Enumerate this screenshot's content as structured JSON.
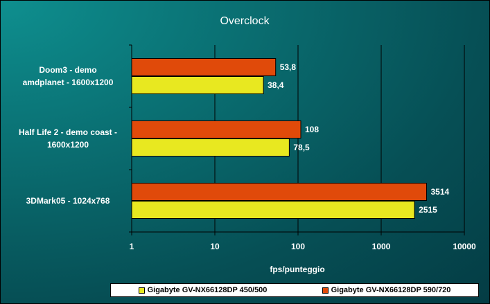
{
  "colors": {
    "series_a": "#e8e820",
    "series_b": "#e04a0a",
    "grid": "#000000"
  },
  "chart_data": {
    "type": "bar",
    "orientation": "horizontal",
    "title": "Overclock",
    "xlabel": "fps/punteggio",
    "x_scale": "log",
    "xlim": [
      1,
      10000
    ],
    "x_ticks": [
      "1",
      "10",
      "100",
      "1000",
      "10000"
    ],
    "categories": [
      [
        "Doom3 - demo",
        "amdplanet - 1600x1200"
      ],
      [
        "Half Life 2 - demo coast -",
        "1600x1200"
      ],
      [
        "3DMark05 - 1024x768"
      ]
    ],
    "series": [
      {
        "name": "Gigabyte GV-NX66128DP 450/500",
        "values": [
          38.4,
          78.5,
          2515
        ],
        "labels": [
          "38,4",
          "78,5",
          "2515"
        ]
      },
      {
        "name": "Gigabyte GV-NX66128DP 590/720",
        "values": [
          53.8,
          108,
          3514
        ],
        "labels": [
          "53,8",
          "108",
          "3514"
        ]
      }
    ],
    "grid": true,
    "legend_position": "bottom"
  }
}
